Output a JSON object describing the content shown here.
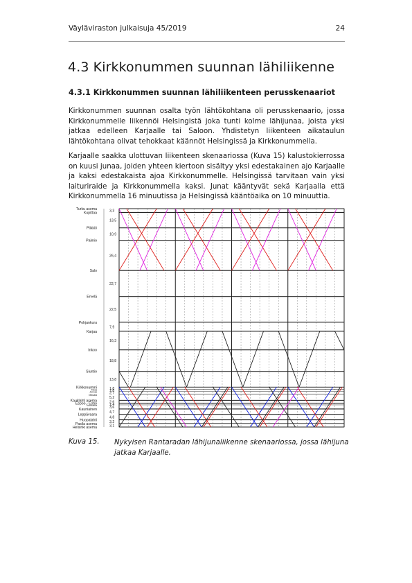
{
  "header": {
    "publication": "Väyläviraston julkaisuja 45/2019",
    "page_number": "24"
  },
  "section": {
    "title": "4.3 Kirkkonummen suunnan lähiliikenne",
    "subsection_title": "4.3.1 Kirkkonummen suunnan lähiliikenteen perusskenaariot",
    "paragraphs": [
      "Kirkkonummen suunnan osalta työn lähtökohtana oli perusskenaario, jossa Kirkkonummelle liikennöi Helsingistä joka tunti kolme lähijunaa, joista yksi jatkaa edelleen Karjaalle tai Saloon. Yhdistetyn liikenteen aikataulun lähtökohtana olivat tehokkaat käännöt Helsingissä ja Kirkkonummella.",
      "Karjaalle saakka ulottuvan liikenteen skenaariossa (Kuva 15) kalustokierrossa on kuusi junaa, joiden yhteen kiertoon sisältyy yksi edestakainen ajo Karjaalle ja kaksi edestakaista ajoa Kirkkonummelle. Helsingissä tarvitaan vain yksi laituriraide ja Kirkkonummella kaksi. Junat kääntyvät sekä Karjaalla että Kirkkonummella 16 minuutissa ja Helsingissä kääntöaika on 10 minuuttia."
    ]
  },
  "figure": {
    "caption_label": "Kuva 15.",
    "caption_text": "Nykyisen Rantaradan lähijunaliikenne skenaariossa, jossa lähijuna jatkaa Karjaalle.",
    "colors": {
      "red": "#e0201c",
      "magenta": "#e020e0",
      "blue": "#1020e0",
      "black": "#222222",
      "grid": "#555555"
    },
    "stations": [
      {
        "name": "Turku asema",
        "km": 0,
        "major": true
      },
      {
        "name": "Kupittaa",
        "km": 3.3,
        "major": true
      },
      {
        "name": "Piikkiö",
        "km": 16.8,
        "major": true
      },
      {
        "name": "Paimio",
        "km": 27.7,
        "major": true
      },
      {
        "name": "Salo",
        "km": 54.1,
        "major": true
      },
      {
        "name": "Ervelä",
        "km": 76.8,
        "major": true
      },
      {
        "name": "Pohjankuru",
        "km": 99.3,
        "major": true
      },
      {
        "name": "Karjaa",
        "km": 107.2,
        "major": true
      },
      {
        "name": "Inkoo",
        "km": 123.5,
        "major": true
      },
      {
        "name": "Siuntio",
        "km": 142.3,
        "major": true
      },
      {
        "name": "Kirkkonummi",
        "km": 156.1,
        "major": true
      },
      {
        "name": "Tolsa",
        "km": 157.9,
        "major": false
      },
      {
        "name": "Jorvas",
        "km": 159.7,
        "major": false
      },
      {
        "name": "Masala",
        "km": 162.4,
        "major": false
      },
      {
        "name": "Kauklahti asema",
        "km": 167.6,
        "major": true
      },
      {
        "name": "Espoo - Esbo",
        "km": 170.2,
        "major": true
      },
      {
        "name": "Tuomarila",
        "km": 171.6,
        "major": false
      },
      {
        "name": "Kauniainen",
        "km": 175.2,
        "major": true
      },
      {
        "name": "Leppävaara",
        "km": 179.9,
        "major": true
      },
      {
        "name": "Huopalahti",
        "km": 184.7,
        "major": true
      },
      {
        "name": "Pasila asema",
        "km": 187.9,
        "major": true
      },
      {
        "name": "Helsinki asema",
        "km": 191.0,
        "major": true
      }
    ],
    "segment_labels": [
      "3,3",
      "13,5",
      "10,9",
      "26,4",
      "22,7",
      "22,5",
      "7,9",
      "16,3",
      "18,8",
      "13,8",
      "1,8",
      "1,8",
      "2,7",
      "5,2",
      "2,6",
      "1,4",
      "3,6",
      "4,7",
      "4,8",
      "3,2",
      "3,1"
    ],
    "chart_data": {
      "type": "line",
      "xlabel": "",
      "ylabel": "",
      "xlim": [
        0,
        240
      ],
      "series": [
        {
          "color": "red",
          "points": [
            [
              8,
              "Turku asema"
            ],
            [
              48,
              "Salo"
            ]
          ]
        },
        {
          "color": "red",
          "points": [
            [
              40,
              "Turku asema"
            ],
            [
              0,
              "Salo"
            ]
          ]
        },
        {
          "color": "red",
          "points": [
            [
              68,
              "Turku asema"
            ],
            [
              108,
              "Salo"
            ]
          ]
        },
        {
          "color": "red",
          "points": [
            [
              100,
              "Turku asema"
            ],
            [
              60,
              "Salo"
            ]
          ]
        },
        {
          "color": "red",
          "points": [
            [
              128,
              "Turku asema"
            ],
            [
              168,
              "Salo"
            ]
          ]
        },
        {
          "color": "red",
          "points": [
            [
              160,
              "Turku asema"
            ],
            [
              120,
              "Salo"
            ]
          ]
        },
        {
          "color": "red",
          "points": [
            [
              188,
              "Turku asema"
            ],
            [
              228,
              "Salo"
            ]
          ]
        },
        {
          "color": "red",
          "points": [
            [
              220,
              "Turku asema"
            ],
            [
              180,
              "Salo"
            ]
          ]
        },
        {
          "color": "magenta",
          "points": [
            [
              0,
              "Turku asema"
            ],
            [
              30,
              "Salo"
            ]
          ]
        },
        {
          "color": "magenta",
          "points": [
            [
              22,
              "Salo"
            ],
            [
              52,
              "Turku asema"
            ]
          ]
        },
        {
          "color": "magenta",
          "points": [
            [
              60,
              "Turku asema"
            ],
            [
              90,
              "Salo"
            ]
          ]
        },
        {
          "color": "magenta",
          "points": [
            [
              82,
              "Salo"
            ],
            [
              112,
              "Turku asema"
            ]
          ]
        },
        {
          "color": "magenta",
          "points": [
            [
              120,
              "Turku asema"
            ],
            [
              150,
              "Salo"
            ]
          ]
        },
        {
          "color": "magenta",
          "points": [
            [
              142,
              "Salo"
            ],
            [
              172,
              "Turku asema"
            ]
          ]
        },
        {
          "color": "magenta",
          "points": [
            [
              180,
              "Turku asema"
            ],
            [
              210,
              "Salo"
            ]
          ]
        },
        {
          "color": "magenta",
          "points": [
            [
              202,
              "Salo"
            ],
            [
              232,
              "Turku asema"
            ]
          ]
        },
        {
          "color": "black",
          "points": [
            [
              0,
              "Siuntio"
            ],
            [
              10,
              "Kirkkonummi"
            ]
          ]
        },
        {
          "color": "black",
          "points": [
            [
              12,
              "Kirkkonummi"
            ],
            [
              34,
              "Karjaa"
            ],
            [
              50,
              "Karjaa"
            ],
            [
              72,
              "Kirkkonummi"
            ]
          ]
        },
        {
          "color": "black",
          "points": [
            [
              72,
              "Kirkkonummi"
            ],
            [
              94,
              "Karjaa"
            ],
            [
              110,
              "Karjaa"
            ],
            [
              132,
              "Kirkkonummi"
            ]
          ]
        },
        {
          "color": "black",
          "points": [
            [
              132,
              "Kirkkonummi"
            ],
            [
              154,
              "Karjaa"
            ],
            [
              170,
              "Karjaa"
            ],
            [
              192,
              "Kirkkonummi"
            ]
          ]
        },
        {
          "color": "black",
          "points": [
            [
              192,
              "Kirkkonummi"
            ],
            [
              214,
              "Karjaa"
            ],
            [
              230,
              "Karjaa"
            ],
            [
              240,
              "Inkoo"
            ]
          ]
        },
        {
          "color": "blue",
          "points": [
            [
              0,
              "Kirkkonummi"
            ],
            [
              28,
              "Helsinki asema"
            ]
          ]
        },
        {
          "color": "blue",
          "points": [
            [
              20,
              "Helsinki asema"
            ],
            [
              48,
              "Kirkkonummi"
            ]
          ]
        },
        {
          "color": "blue",
          "points": [
            [
              60,
              "Kirkkonummi"
            ],
            [
              88,
              "Helsinki asema"
            ]
          ]
        },
        {
          "color": "blue",
          "points": [
            [
              80,
              "Helsinki asema"
            ],
            [
              108,
              "Kirkkonummi"
            ]
          ]
        },
        {
          "color": "blue",
          "points": [
            [
              120,
              "Kirkkonummi"
            ],
            [
              148,
              "Helsinki asema"
            ]
          ]
        },
        {
          "color": "blue",
          "points": [
            [
              140,
              "Helsinki asema"
            ],
            [
              168,
              "Kirkkonummi"
            ]
          ]
        },
        {
          "color": "blue",
          "points": [
            [
              180,
              "Kirkkonummi"
            ],
            [
              208,
              "Helsinki asema"
            ]
          ]
        },
        {
          "color": "blue",
          "points": [
            [
              200,
              "Helsinki asema"
            ],
            [
              228,
              "Kirkkonummi"
            ]
          ]
        },
        {
          "color": "red",
          "points": [
            [
              10,
              "Kirkkonummi"
            ],
            [
              38,
              "Helsinki asema"
            ]
          ]
        },
        {
          "color": "red",
          "points": [
            [
              30,
              "Helsinki asema"
            ],
            [
              58,
              "Kirkkonummi"
            ]
          ]
        },
        {
          "color": "red",
          "points": [
            [
              70,
              "Kirkkonummi"
            ],
            [
              98,
              "Helsinki asema"
            ]
          ]
        },
        {
          "color": "red",
          "points": [
            [
              90,
              "Helsinki asema"
            ],
            [
              118,
              "Kirkkonummi"
            ]
          ]
        },
        {
          "color": "red",
          "points": [
            [
              130,
              "Kirkkonummi"
            ],
            [
              158,
              "Helsinki asema"
            ]
          ]
        },
        {
          "color": "red",
          "points": [
            [
              150,
              "Helsinki asema"
            ],
            [
              178,
              "Kirkkonummi"
            ]
          ]
        },
        {
          "color": "red",
          "points": [
            [
              190,
              "Kirkkonummi"
            ],
            [
              218,
              "Helsinki asema"
            ]
          ]
        },
        {
          "color": "red",
          "points": [
            [
              210,
              "Helsinki asema"
            ],
            [
              238,
              "Kirkkonummi"
            ]
          ]
        },
        {
          "color": "black",
          "points": [
            [
              0,
              "Helsinki asema"
            ],
            [
              28,
              "Kirkkonummi"
            ]
          ]
        },
        {
          "color": "black",
          "points": [
            [
              40,
              "Kirkkonummi"
            ],
            [
              68,
              "Helsinki asema"
            ]
          ]
        },
        {
          "color": "black",
          "points": [
            [
              100,
              "Kirkkonummi"
            ],
            [
              128,
              "Helsinki asema"
            ]
          ]
        },
        {
          "color": "black",
          "points": [
            [
              88,
              "Helsinki asema"
            ],
            [
              116,
              "Kirkkonummi"
            ]
          ]
        },
        {
          "color": "black",
          "points": [
            [
              148,
              "Helsinki asema"
            ],
            [
              176,
              "Kirkkonummi"
            ]
          ]
        },
        {
          "color": "black",
          "points": [
            [
              160,
              "Kirkkonummi"
            ],
            [
              188,
              "Helsinki asema"
            ]
          ]
        },
        {
          "color": "black",
          "points": [
            [
              208,
              "Helsinki asema"
            ],
            [
              236,
              "Kirkkonummi"
            ]
          ]
        },
        {
          "color": "magenta",
          "points": [
            [
              44,
              "Kirkkonummi"
            ],
            [
              72,
              "Helsinki asema"
            ]
          ]
        },
        {
          "color": "magenta",
          "points": [
            [
              164,
              "Helsinki asema"
            ],
            [
              192,
              "Kirkkonummi"
            ]
          ]
        }
      ]
    }
  }
}
